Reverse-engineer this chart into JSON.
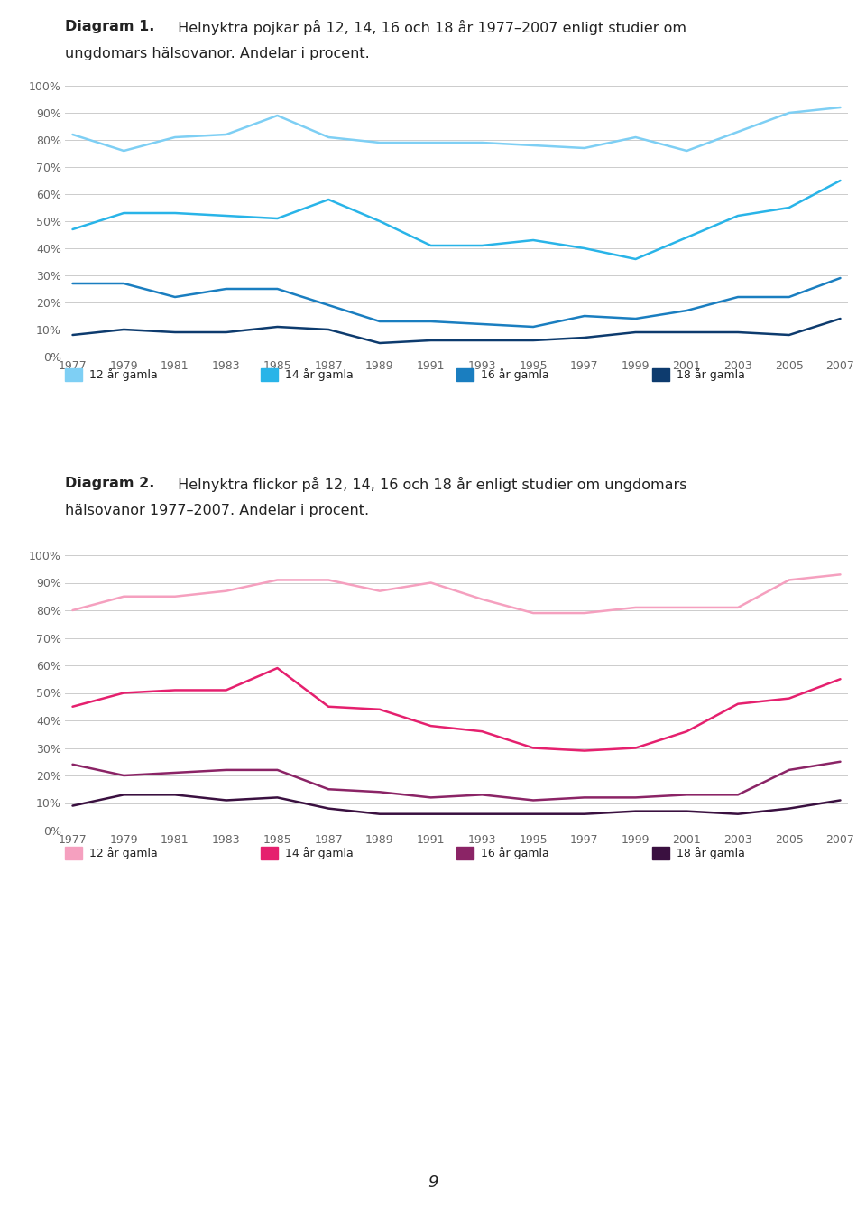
{
  "years": [
    1977,
    1979,
    1981,
    1983,
    1985,
    1987,
    1989,
    1991,
    1993,
    1995,
    1997,
    1999,
    2001,
    2003,
    2005,
    2007
  ],
  "diagram1": {
    "title_bold": "Diagram 1.",
    "title_rest_line1": " Helnyktra pojkar på 12, 14, 16 och 18 år 1977–2007 enligt studier om",
    "title_line2": "ungdomars hälsovanor. Andelar i procent.",
    "series_keys": [
      "12 år gamla",
      "14 år gamla",
      "16 år gamla",
      "18 år gamla"
    ],
    "series": {
      "12 år gamla": [
        82,
        76,
        81,
        82,
        89,
        81,
        79,
        79,
        79,
        78,
        77,
        81,
        76,
        83,
        90,
        92
      ],
      "14 år gamla": [
        47,
        53,
        53,
        52,
        51,
        58,
        50,
        41,
        41,
        43,
        40,
        36,
        44,
        52,
        55,
        65
      ],
      "16 år gamla": [
        27,
        27,
        22,
        25,
        25,
        19,
        13,
        13,
        12,
        11,
        15,
        14,
        17,
        22,
        22,
        29
      ],
      "18 år gamla": [
        8,
        10,
        9,
        9,
        11,
        10,
        5,
        6,
        6,
        6,
        7,
        9,
        9,
        9,
        8,
        14
      ]
    },
    "colors": {
      "12 år gamla": "#7ecff4",
      "14 år gamla": "#29b4e8",
      "16 år gamla": "#1a7ec0",
      "18 år gamla": "#0d3b6e"
    }
  },
  "diagram2": {
    "title_bold": "Diagram 2.",
    "title_rest_line1": " Helnyktra flickor på 12, 14, 16 och 18 år enligt studier om ungdomars",
    "title_line2": "hälsovanor 1977–2007. Andelar i procent.",
    "series_keys": [
      "12 år gamla",
      "14 år gamla",
      "16 år gamla",
      "18 år gamla"
    ],
    "series": {
      "12 år gamla": [
        80,
        85,
        85,
        87,
        91,
        91,
        87,
        90,
        84,
        79,
        79,
        81,
        81,
        81,
        91,
        93
      ],
      "14 år gamla": [
        45,
        50,
        51,
        51,
        59,
        45,
        44,
        38,
        36,
        30,
        29,
        30,
        36,
        46,
        48,
        55
      ],
      "16 år gamla": [
        24,
        20,
        21,
        22,
        22,
        15,
        14,
        12,
        13,
        11,
        12,
        12,
        13,
        13,
        22,
        25
      ],
      "18 år gamla": [
        9,
        13,
        13,
        11,
        12,
        8,
        6,
        6,
        6,
        6,
        6,
        7,
        7,
        6,
        8,
        11
      ]
    },
    "colors": {
      "12 år gamla": "#f5a0bf",
      "14 år gamla": "#e5206e",
      "16 år gamla": "#8b2466",
      "18 år gamla": "#3a1040"
    }
  },
  "yticks": [
    0,
    10,
    20,
    30,
    40,
    50,
    60,
    70,
    80,
    90,
    100
  ],
  "ylim": [
    0,
    100
  ],
  "background_color": "#ffffff",
  "grid_color": "#cccccc",
  "text_color": "#222222",
  "tick_color": "#666666",
  "page_number": "9",
  "title_fontsize": 11.5,
  "tick_fontsize": 9,
  "legend_fontsize": 9,
  "linewidth": 1.8
}
